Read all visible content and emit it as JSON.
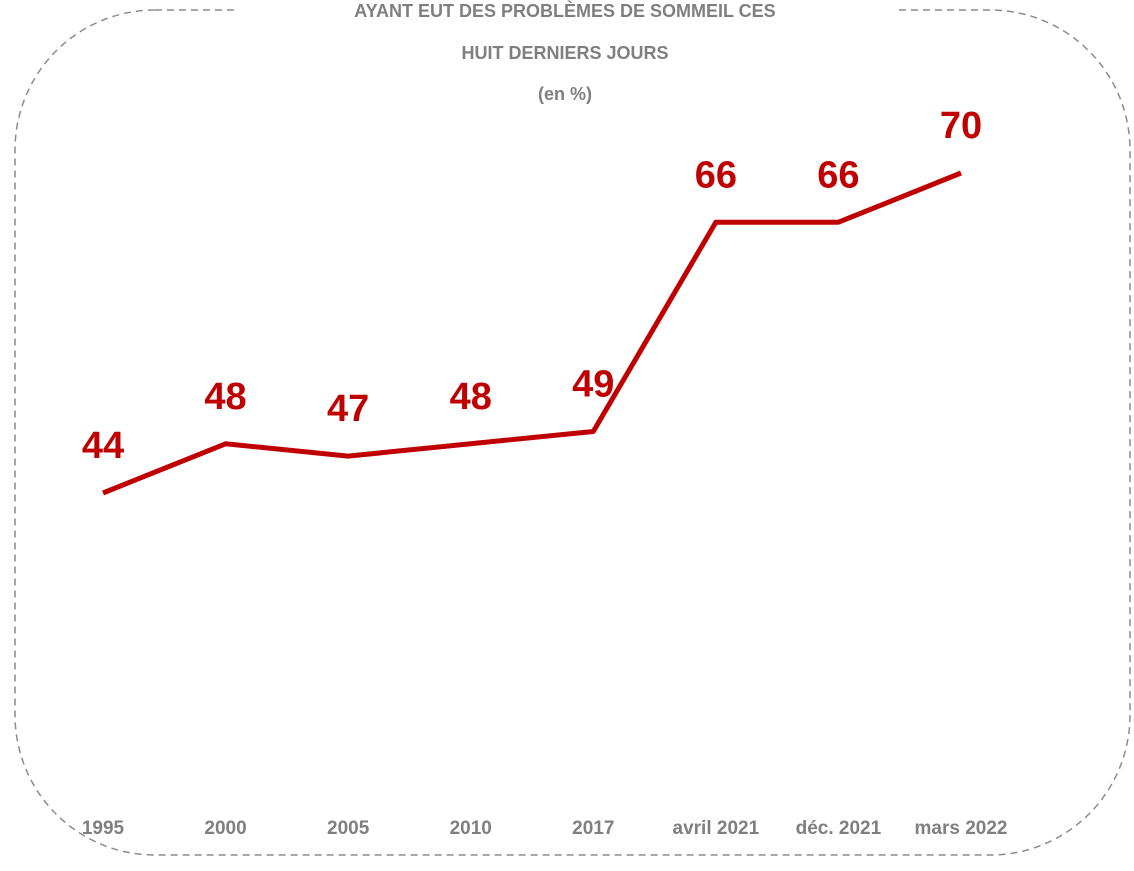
{
  "chart_data": {
    "type": "line",
    "title": [
      "AYANT EUT DES PROBLÈMES DE SOMMEIL CES",
      "HUIT DERNIERS JOURS"
    ],
    "subtitle": "(en %)",
    "categories": [
      "1995",
      "2000",
      "2005",
      "2010",
      "2017",
      "avril 2021",
      "déc. 2021",
      "mars 2022"
    ],
    "values": [
      44,
      48,
      47,
      48,
      49,
      66,
      66,
      70
    ],
    "color": "#c00000"
  }
}
